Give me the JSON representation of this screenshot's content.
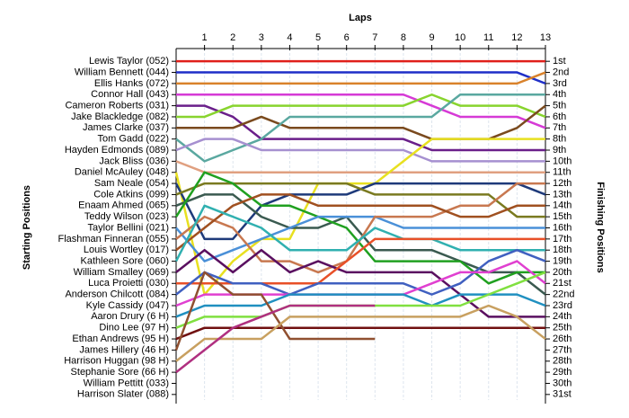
{
  "chart_data": {
    "type": "line",
    "x_label": "Laps",
    "y_label": "Starting Positions",
    "y2_label": "Finishing Positions",
    "x": [
      0,
      1,
      2,
      3,
      4,
      5,
      6,
      7,
      8,
      9,
      10,
      11,
      12,
      13
    ],
    "xlim": [
      0,
      13
    ],
    "xticks": [
      1,
      2,
      3,
      4,
      5,
      6,
      7,
      8,
      9,
      10,
      11,
      12,
      13
    ],
    "ylim": [
      0.5,
      31.5
    ],
    "inverted_y": true,
    "grid": true,
    "yticks": [
      {
        "value": 1,
        "label": "1st"
      },
      {
        "value": 2,
        "label": "2nd"
      },
      {
        "value": 3,
        "label": "3rd"
      },
      {
        "value": 4,
        "label": "4th"
      },
      {
        "value": 5,
        "label": "5th"
      },
      {
        "value": 6,
        "label": "6th"
      },
      {
        "value": 7,
        "label": "7th"
      },
      {
        "value": 8,
        "label": "8th"
      },
      {
        "value": 9,
        "label": "9th"
      },
      {
        "value": 10,
        "label": "10th"
      },
      {
        "value": 11,
        "label": "11th"
      },
      {
        "value": 12,
        "label": "12th"
      },
      {
        "value": 13,
        "label": "13th"
      },
      {
        "value": 14,
        "label": "14th"
      },
      {
        "value": 15,
        "label": "15th"
      },
      {
        "value": 16,
        "label": "16th"
      },
      {
        "value": 17,
        "label": "17th"
      },
      {
        "value": 18,
        "label": "18th"
      },
      {
        "value": 19,
        "label": "19th"
      },
      {
        "value": 20,
        "label": "20th"
      },
      {
        "value": 21,
        "label": "21st"
      },
      {
        "value": 22,
        "label": "22nd"
      },
      {
        "value": 23,
        "label": "23rd"
      },
      {
        "value": 24,
        "label": "24th"
      },
      {
        "value": 25,
        "label": "25th"
      },
      {
        "value": 26,
        "label": "26th"
      },
      {
        "value": 27,
        "label": "27th"
      },
      {
        "value": 28,
        "label": "28th"
      },
      {
        "value": 29,
        "label": "29th"
      },
      {
        "value": 30,
        "label": "30th"
      },
      {
        "value": 31,
        "label": "31st"
      }
    ],
    "series": [
      {
        "name": "Lewis Taylor (052)",
        "color": "#e0201b",
        "values": [
          1,
          1,
          1,
          1,
          1,
          1,
          1,
          1,
          1,
          1,
          1,
          1,
          1,
          1
        ]
      },
      {
        "name": "William Bennett (044)",
        "color": "#1f2fc8",
        "values": [
          2,
          2,
          2,
          2,
          2,
          2,
          2,
          2,
          2,
          2,
          2,
          2,
          2,
          3
        ]
      },
      {
        "name": "Ellis Hanks (072)",
        "color": "#d9822b",
        "values": [
          3,
          3,
          3,
          3,
          3,
          3,
          3,
          3,
          3,
          3,
          3,
          3,
          3,
          2
        ]
      },
      {
        "name": "Connor Hall (043)",
        "color": "#d63ad6",
        "values": [
          4,
          4,
          4,
          4,
          4,
          4,
          4,
          4,
          4,
          5,
          6,
          6,
          6,
          7
        ]
      },
      {
        "name": "Cameron Roberts (031)",
        "color": "#6a1f8a",
        "values": [
          5,
          5,
          6,
          8,
          8,
          8,
          8,
          8,
          8,
          9,
          9,
          9,
          9,
          9
        ]
      },
      {
        "name": "Jake Blackledge (082)",
        "color": "#88d42e",
        "values": [
          6,
          6,
          5,
          5,
          5,
          5,
          5,
          5,
          5,
          4,
          5,
          5,
          5,
          6
        ]
      },
      {
        "name": "James Clarke (037)",
        "color": "#7a4a1e",
        "values": [
          7,
          7,
          7,
          6,
          7,
          7,
          7,
          7,
          7,
          8,
          8,
          8,
          7,
          5
        ]
      },
      {
        "name": "Tom Gadd (022)",
        "color": "#5aa8a0",
        "values": [
          8,
          10,
          9,
          8,
          6,
          6,
          6,
          6,
          6,
          6,
          4,
          4,
          4,
          4
        ]
      },
      {
        "name": "Hayden Edmonds (089)",
        "color": "#a690d0",
        "values": [
          9,
          8,
          8,
          9,
          9,
          9,
          9,
          9,
          9,
          10,
          10,
          10,
          10,
          10
        ]
      },
      {
        "name": "Jack Bliss (036)",
        "color": "#e0a080",
        "values": [
          10,
          11,
          11,
          11,
          11,
          11,
          11,
          11,
          11,
          11,
          11,
          11,
          11,
          11
        ]
      },
      {
        "name": "Daniel McAuley (048)",
        "color": "#e8e020",
        "values": [
          11,
          22,
          19,
          17,
          17,
          12,
          12,
          12,
          10,
          8,
          8,
          8,
          8,
          8
        ]
      },
      {
        "name": "Sam Neale (054)",
        "color": "#1e3a7a",
        "values": [
          12,
          17,
          17,
          14,
          13,
          13,
          13,
          12,
          12,
          12,
          12,
          12,
          12,
          13
        ]
      },
      {
        "name": "Cole Atkins (099)",
        "color": "#7a7a20",
        "values": [
          13,
          12,
          12,
          12,
          12,
          12,
          12,
          13,
          13,
          13,
          13,
          13,
          15,
          15
        ]
      },
      {
        "name": "Enaam Ahmed (065)",
        "color": "#3a5a50",
        "values": [
          14,
          13,
          13,
          15,
          16,
          16,
          15,
          18,
          18,
          18,
          19,
          20,
          20,
          22
        ]
      },
      {
        "name": "Teddy Wilson (023)",
        "color": "#20a020",
        "values": [
          15,
          11,
          12,
          14,
          14,
          15,
          16,
          19,
          19,
          19,
          19,
          21,
          20,
          20
        ]
      },
      {
        "name": "Taylor Bellini (021)",
        "color": "#4a90d8",
        "values": [
          16,
          19,
          18,
          17,
          16,
          15,
          15,
          15,
          16,
          16,
          16,
          16,
          16,
          16
        ]
      },
      {
        "name": "Flashman Finneran (055)",
        "color": "#c87850",
        "values": [
          17,
          15,
          16,
          19,
          19,
          20,
          19,
          15,
          15,
          15,
          14,
          14,
          12,
          12
        ]
      },
      {
        "name": "Louis Wortley (017)",
        "color": "#a05020",
        "values": [
          18,
          16,
          14,
          13,
          13,
          14,
          14,
          14,
          14,
          14,
          15,
          15,
          14,
          14
        ]
      },
      {
        "name": "Kathleen Sore (060)",
        "color": "#30b0b0",
        "values": [
          19,
          14,
          15,
          16,
          18,
          18,
          18,
          16,
          17,
          17,
          18,
          18,
          18,
          18
        ]
      },
      {
        "name": "William Smalley (069)",
        "color": "#5a1060",
        "values": [
          20,
          18,
          20,
          18,
          20,
          19,
          20,
          20,
          20,
          20,
          22,
          24,
          24,
          24
        ]
      },
      {
        "name": "Luca Proietti (030)",
        "color": "#e85028",
        "values": [
          21,
          21,
          21,
          21,
          21,
          21,
          19,
          17,
          17,
          17,
          17,
          17,
          17,
          17
        ]
      },
      {
        "name": "Anderson Chilcott (084)",
        "color": "#4060c0",
        "values": [
          22,
          20,
          21,
          21,
          22,
          21,
          21,
          21,
          21,
          22,
          21,
          19,
          18,
          19
        ]
      },
      {
        "name": "Kyle Cassidy (047)",
        "color": "#e040d0",
        "values": [
          23,
          22,
          22,
          22,
          22,
          22,
          22,
          22,
          22,
          21,
          20,
          20,
          19,
          21
        ]
      },
      {
        "name": "Aaron Drury (6 H)",
        "color": "#2090c0",
        "values": [
          24,
          23,
          23,
          23,
          22,
          22,
          22,
          22,
          22,
          23,
          22,
          22,
          22,
          23
        ]
      },
      {
        "name": "Dino Lee (97 H)",
        "color": "#80e040",
        "values": [
          25,
          24,
          24,
          24,
          23,
          23,
          23,
          23,
          23,
          23,
          23,
          22,
          21,
          20
        ]
      },
      {
        "name": "Ethan Andrews (95 H)",
        "color": "#701010",
        "values": [
          26,
          25,
          25,
          25,
          25,
          25,
          25,
          25,
          25,
          25,
          25,
          25,
          25,
          25
        ]
      },
      {
        "name": "James Hillery (46 H)",
        "color": "#905030",
        "values": [
          27,
          20,
          22,
          22,
          26,
          26,
          26,
          26,
          null,
          null,
          null,
          null,
          null,
          null
        ]
      },
      {
        "name": "Harrison Huggan (98 H)",
        "color": "#c8a060",
        "values": [
          28,
          26,
          26,
          26,
          24,
          24,
          24,
          24,
          24,
          24,
          24,
          23,
          24,
          26
        ]
      },
      {
        "name": "Stephanie Sore (66 H)",
        "color": "#b03080",
        "values": [
          29,
          27,
          25,
          24,
          23,
          23,
          23,
          23,
          null,
          null,
          null,
          null,
          null,
          null
        ]
      },
      {
        "name": "William Pettitt (033)",
        "color": "#606060",
        "values": [
          30,
          null,
          null,
          null,
          null,
          null,
          null,
          null,
          null,
          null,
          null,
          null,
          null,
          null
        ]
      },
      {
        "name": "Harrison Slater (088)",
        "color": "#909090",
        "values": [
          31,
          null,
          null,
          null,
          null,
          null,
          null,
          null,
          null,
          null,
          null,
          null,
          null,
          null
        ]
      }
    ]
  }
}
